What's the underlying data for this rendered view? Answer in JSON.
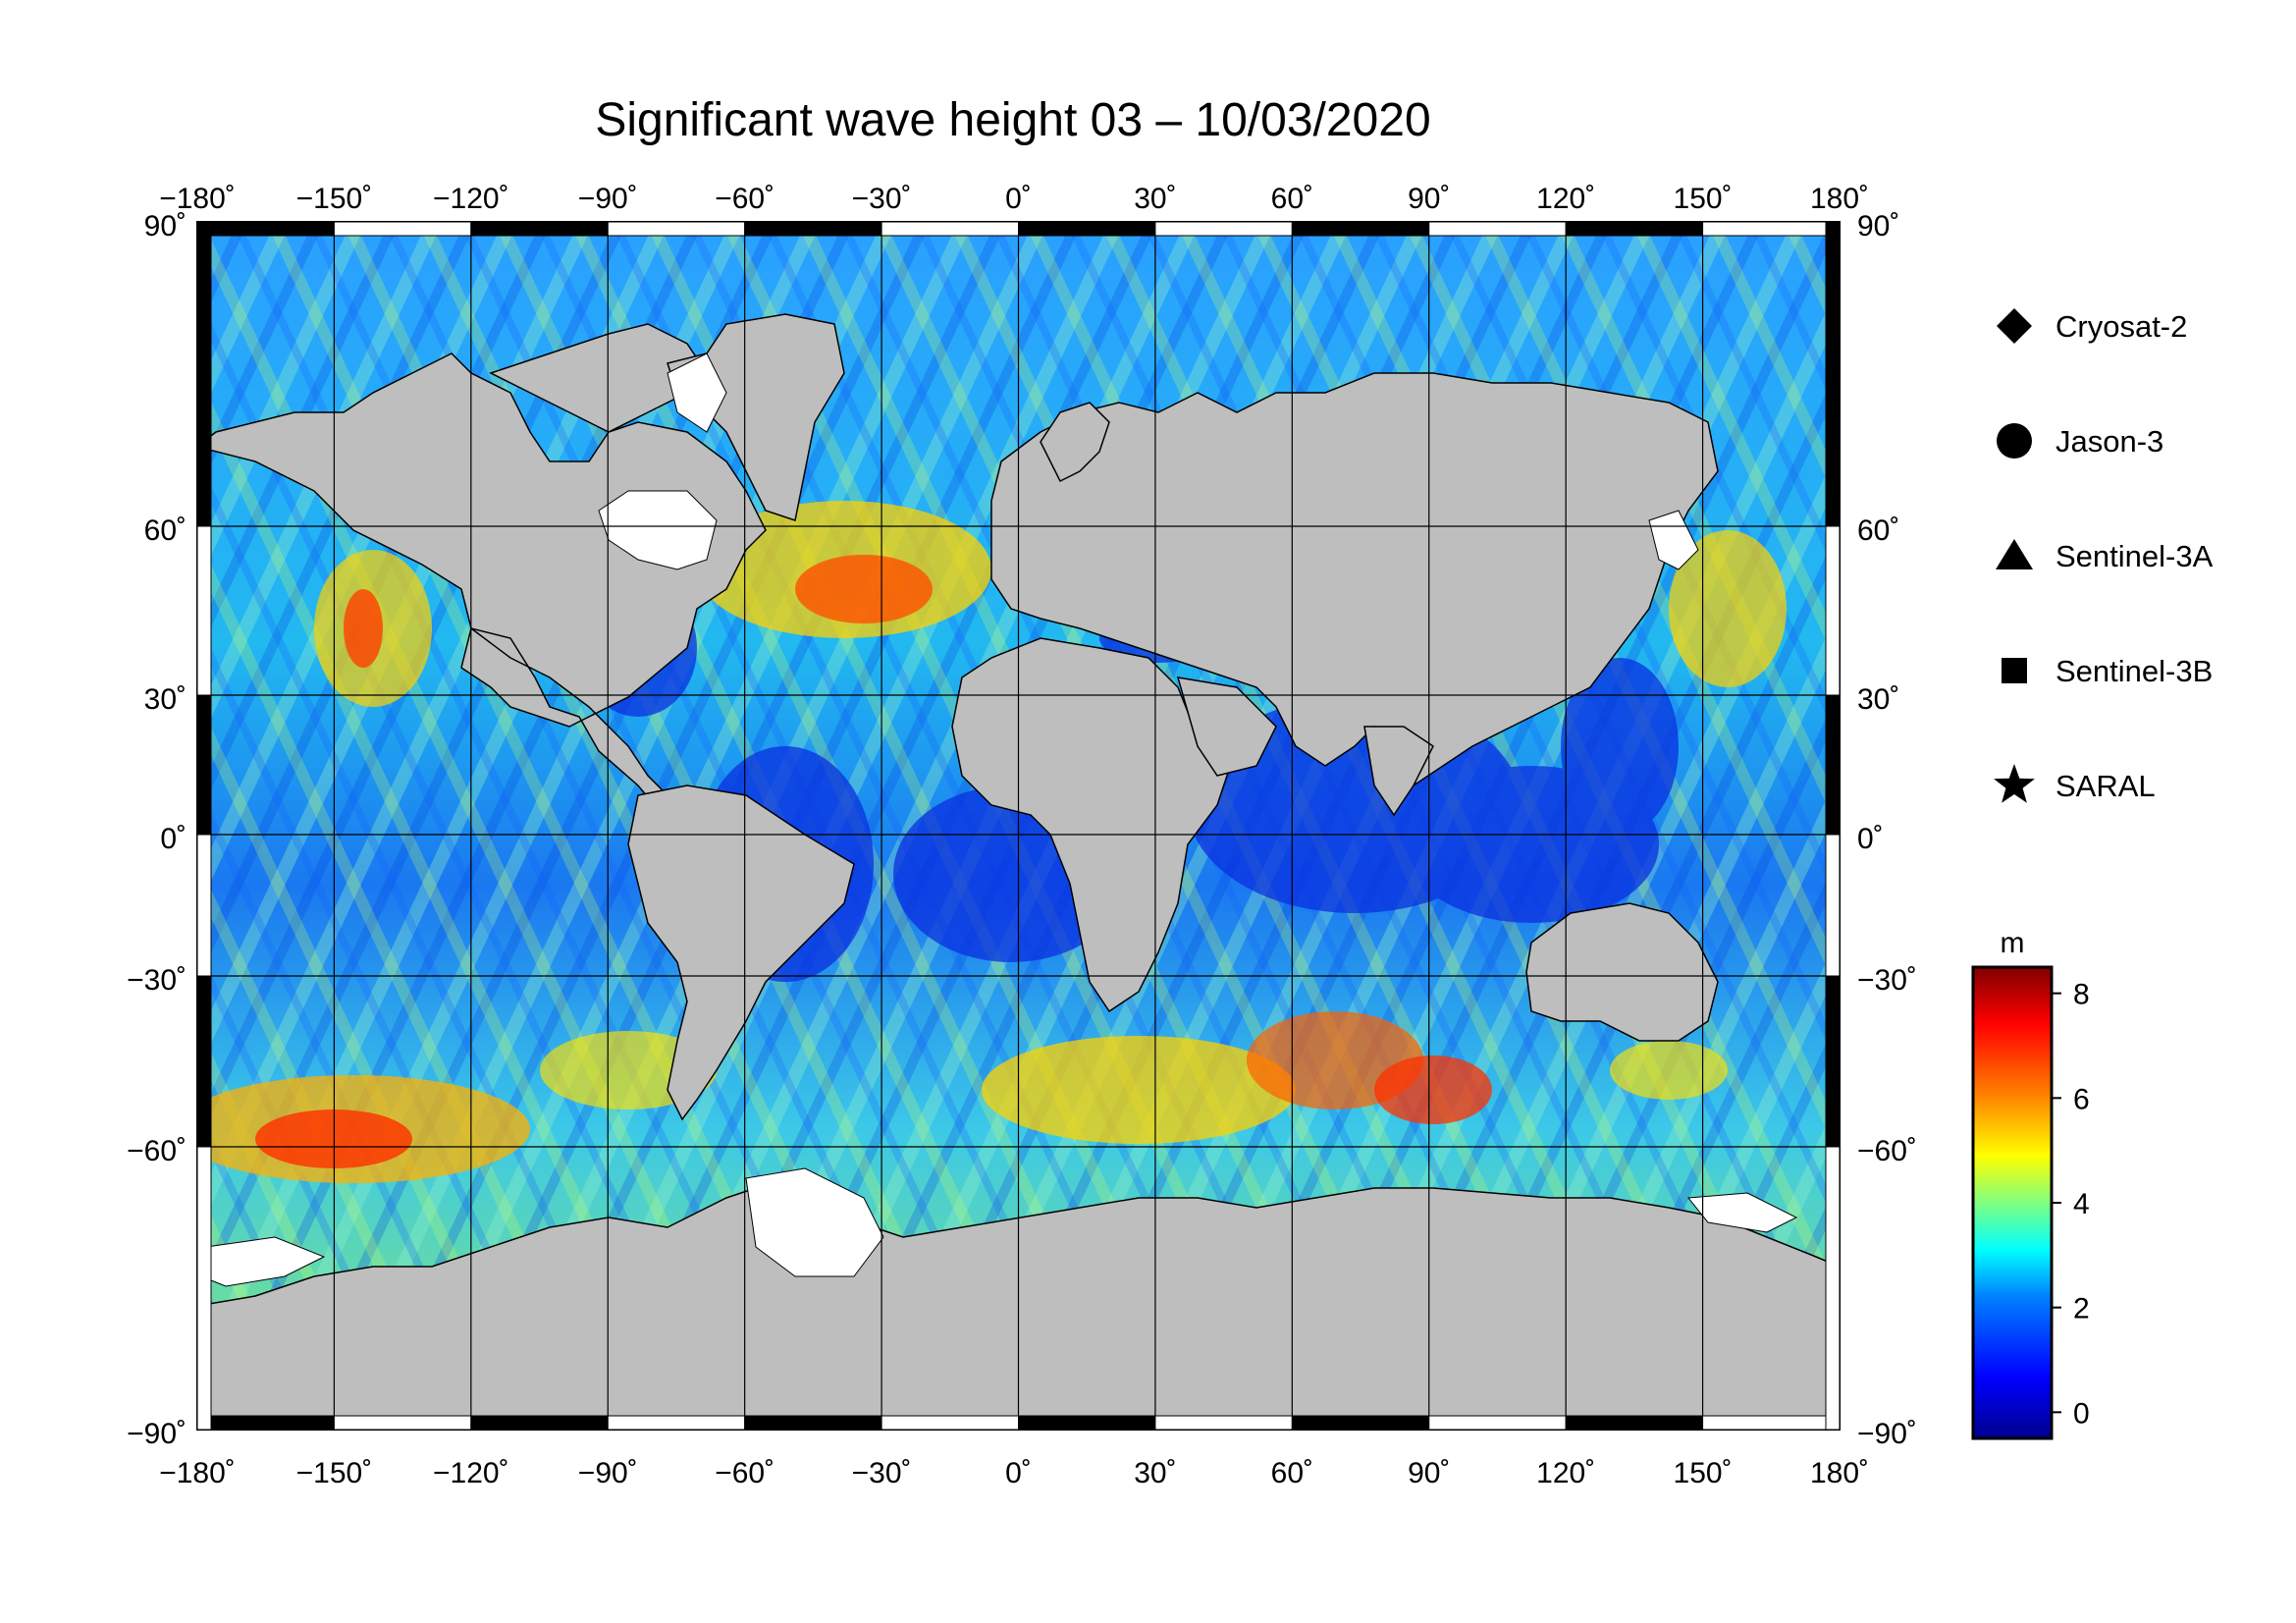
{
  "title": "Significant wave height 03 – 10/03/2020",
  "map": {
    "lon_range": [
      -180,
      180
    ],
    "lat_range": [
      -90,
      90
    ],
    "lon_ticks": [
      {
        "value": -180,
        "label": "−180˚"
      },
      {
        "value": -150,
        "label": "−150˚"
      },
      {
        "value": -120,
        "label": "−120˚"
      },
      {
        "value": -90,
        "label": "−90˚"
      },
      {
        "value": -60,
        "label": "−60˚"
      },
      {
        "value": -30,
        "label": "−30˚"
      },
      {
        "value": 0,
        "label": "0˚"
      },
      {
        "value": 30,
        "label": "30˚"
      },
      {
        "value": 60,
        "label": "60˚"
      },
      {
        "value": 90,
        "label": "90˚"
      },
      {
        "value": 120,
        "label": "120˚"
      },
      {
        "value": 150,
        "label": "150˚"
      },
      {
        "value": 180,
        "label": "180˚"
      }
    ],
    "lat_ticks": [
      {
        "value": 90,
        "label": "90˚"
      },
      {
        "value": 60,
        "label": "60˚"
      },
      {
        "value": 30,
        "label": "30˚"
      },
      {
        "value": 0,
        "label": "0˚"
      },
      {
        "value": -30,
        "label": "−30˚"
      },
      {
        "value": -60,
        "label": "−60˚"
      },
      {
        "value": -90,
        "label": "−90˚"
      }
    ],
    "grid": true,
    "projection": "equirectangular-lat-stretched",
    "colors": {
      "land": "#bebebe",
      "ice": "#ffffff",
      "coast": "#000000",
      "grid": "#000000"
    }
  },
  "legend": {
    "placement": "right",
    "items": [
      {
        "symbol": "diamond",
        "label": "Cryosat-2"
      },
      {
        "symbol": "circle",
        "label": "Jason-3"
      },
      {
        "symbol": "triangle",
        "label": "Sentinel-3A"
      },
      {
        "symbol": "square",
        "label": "Sentinel-3B"
      },
      {
        "symbol": "star",
        "label": "SARAL"
      }
    ]
  },
  "colorbar": {
    "unit": "m",
    "min": -0.5,
    "max": 8.5,
    "ticks": [
      0,
      2,
      4,
      6,
      8
    ],
    "tick_labels": [
      "0",
      "2",
      "4",
      "6",
      "8"
    ],
    "colormap": [
      "#00008f",
      "#0000ff",
      "#0080ff",
      "#00ffff",
      "#80ff80",
      "#ffff00",
      "#ff8000",
      "#ff0000",
      "#800000"
    ]
  }
}
